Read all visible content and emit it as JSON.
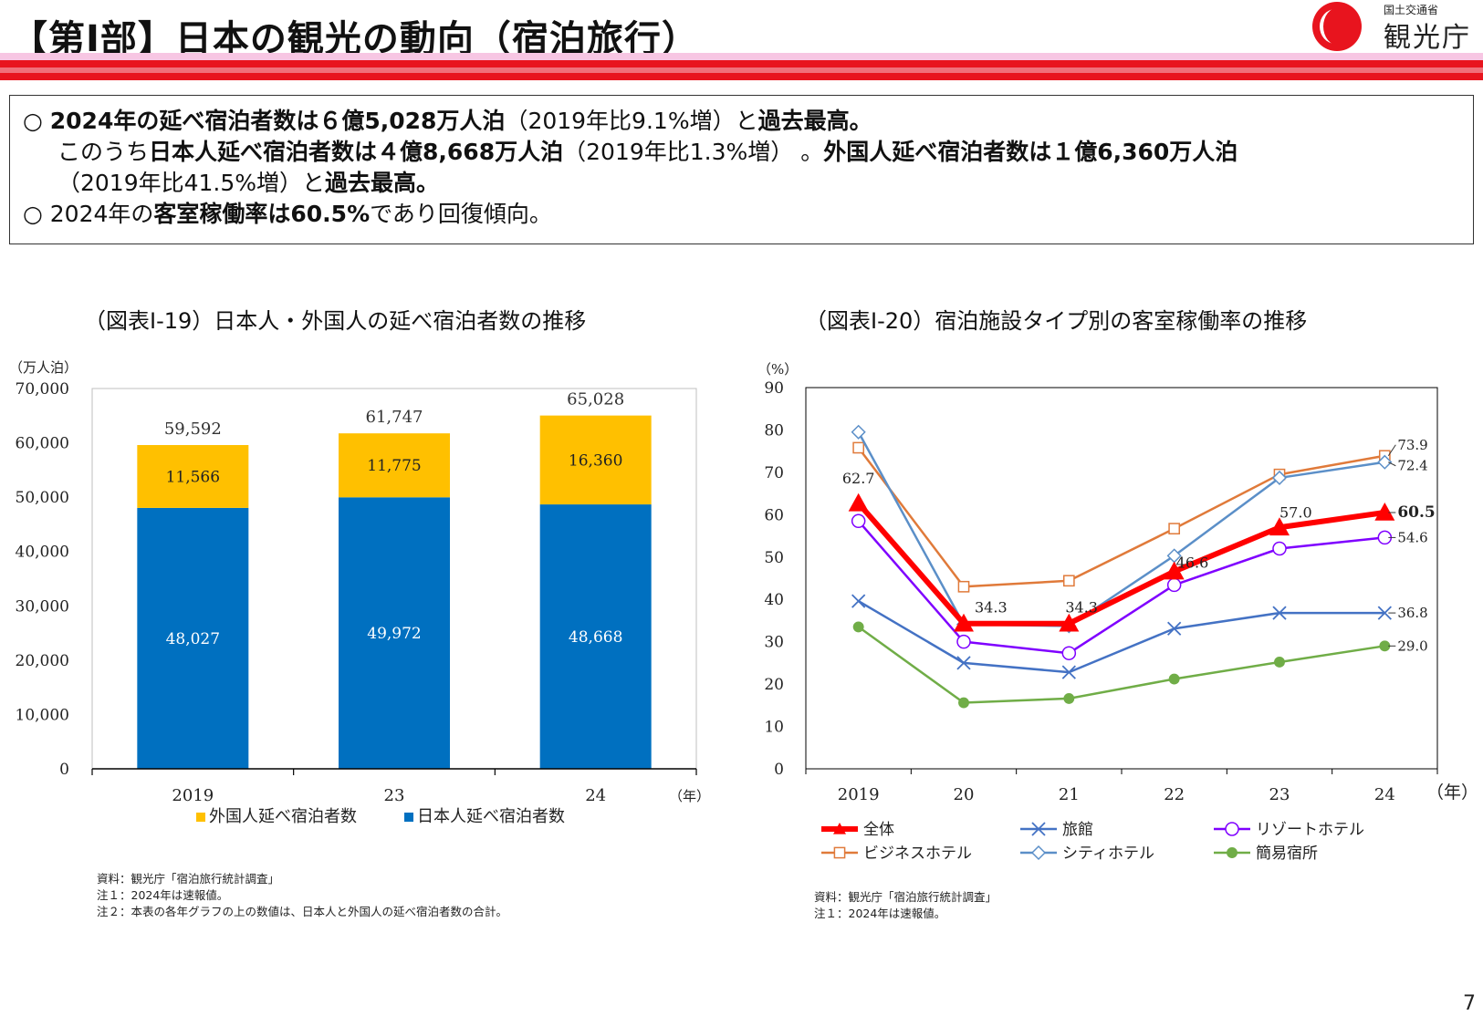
{
  "header": {
    "title": "【第Ⅰ部】日本の観光の動向（宿泊旅行）",
    "logo_ministry": "国土交通省",
    "logo_agency": "観光庁"
  },
  "summary": {
    "line1_a": "○ ",
    "line1_b": "2024年の延べ宿泊者数は６億5,028万人泊",
    "line1_c": "（2019年比9.1%増）と",
    "line1_d": "過去最高。",
    "line2_a": "このうち",
    "line2_b": "日本人延べ宿泊者数は４億8,668万人泊",
    "line2_c": "（2019年比1.3%増） 。",
    "line2_d": "外国人延べ宿泊者数は１億6,360万人泊",
    "line3_a": "（2019年比41.5%増）と",
    "line3_b": "過去最高。",
    "line4_a": "○ 2024年の",
    "line4_b": "客室稼働率は60.5%",
    "line4_c": "であり回復傾向。"
  },
  "chart_data": [
    {
      "type": "bar",
      "stacked": true,
      "title": "（図表Ⅰ-19）日本人・外国人の延べ宿泊者数の推移",
      "ylabel": "（万人泊）",
      "xunit": "（年）",
      "categories": [
        "2019",
        "23",
        "24"
      ],
      "ylim": [
        0,
        70000
      ],
      "yticks": [
        0,
        10000,
        20000,
        30000,
        40000,
        50000,
        60000,
        70000
      ],
      "ytick_labels": [
        "0",
        "10,000",
        "20,000",
        "30,000",
        "40,000",
        "50,000",
        "60,000",
        "70,000"
      ],
      "series": [
        {
          "name": "日本人延べ宿泊者数",
          "color": "#0070c0",
          "values": [
            48027,
            49972,
            48668
          ],
          "labels": [
            "48,027",
            "49,972",
            "48,668"
          ]
        },
        {
          "name": "外国人延べ宿泊者数",
          "color": "#ffc000",
          "values": [
            11566,
            11775,
            16360
          ],
          "labels": [
            "11,566",
            "11,775",
            "16,360"
          ]
        }
      ],
      "totals": [
        "59,592",
        "61,747",
        "65,028"
      ],
      "legend_order": [
        "外国人延べ宿泊者数",
        "日本人延べ宿泊者数"
      ],
      "legend": "bottom",
      "grid": false,
      "notes": [
        "資料：観光庁「宿泊旅行統計調査」",
        "注１：2024年は速報値。",
        "注２：本表の各年グラフの上の数値は、日本人と外国人の延べ宿泊者数の合計。"
      ]
    },
    {
      "type": "line",
      "title": "（図表Ⅰ-20）宿泊施設タイプ別の客室稼働率の推移",
      "ylabel": "（%）",
      "xunit": "（年）",
      "categories": [
        "2019",
        "20",
        "21",
        "22",
        "23",
        "24"
      ],
      "ylim": [
        0,
        90
      ],
      "yticks": [
        0,
        10,
        20,
        30,
        40,
        50,
        60,
        70,
        80,
        90
      ],
      "grid": false,
      "legend": "bottom",
      "series": [
        {
          "name": "全体",
          "color": "#ff0000",
          "marker": "triangle",
          "values": [
            62.7,
            34.3,
            34.3,
            46.6,
            57.0,
            60.5
          ]
        },
        {
          "name": "旅館",
          "color": "#4472c4",
          "marker": "x",
          "values": [
            39.6,
            25.0,
            22.8,
            33.1,
            36.8,
            36.8
          ]
        },
        {
          "name": "リゾートホテル",
          "color": "#7f00ff",
          "marker": "circle-open",
          "values": [
            58.5,
            30.0,
            27.3,
            43.4,
            52.0,
            54.6
          ]
        },
        {
          "name": "ビジネスホテル",
          "color": "#e07a3a",
          "marker": "square-open",
          "values": [
            75.8,
            43.0,
            44.4,
            56.7,
            69.5,
            73.9
          ]
        },
        {
          "name": "シティホテル",
          "color": "#5b8fc8",
          "marker": "diamond-open",
          "values": [
            79.5,
            34.1,
            33.7,
            50.3,
            68.7,
            72.4
          ]
        },
        {
          "name": "簡易宿所",
          "color": "#70ad47",
          "marker": "circle",
          "values": [
            33.5,
            15.6,
            16.6,
            21.2,
            25.2,
            29.0
          ]
        }
      ],
      "annotations": {
        "total": [
          "62.7",
          "34.3",
          "34.3",
          "46.6",
          "57.0",
          "60.5"
        ],
        "end_labels": [
          "73.9",
          "72.4",
          "60.5",
          "54.6",
          "36.8",
          "29.0"
        ]
      },
      "notes": [
        "資料：観光庁「宿泊旅行統計調査」",
        "注１：2024年は速報値。"
      ]
    }
  ],
  "page_number": "7"
}
